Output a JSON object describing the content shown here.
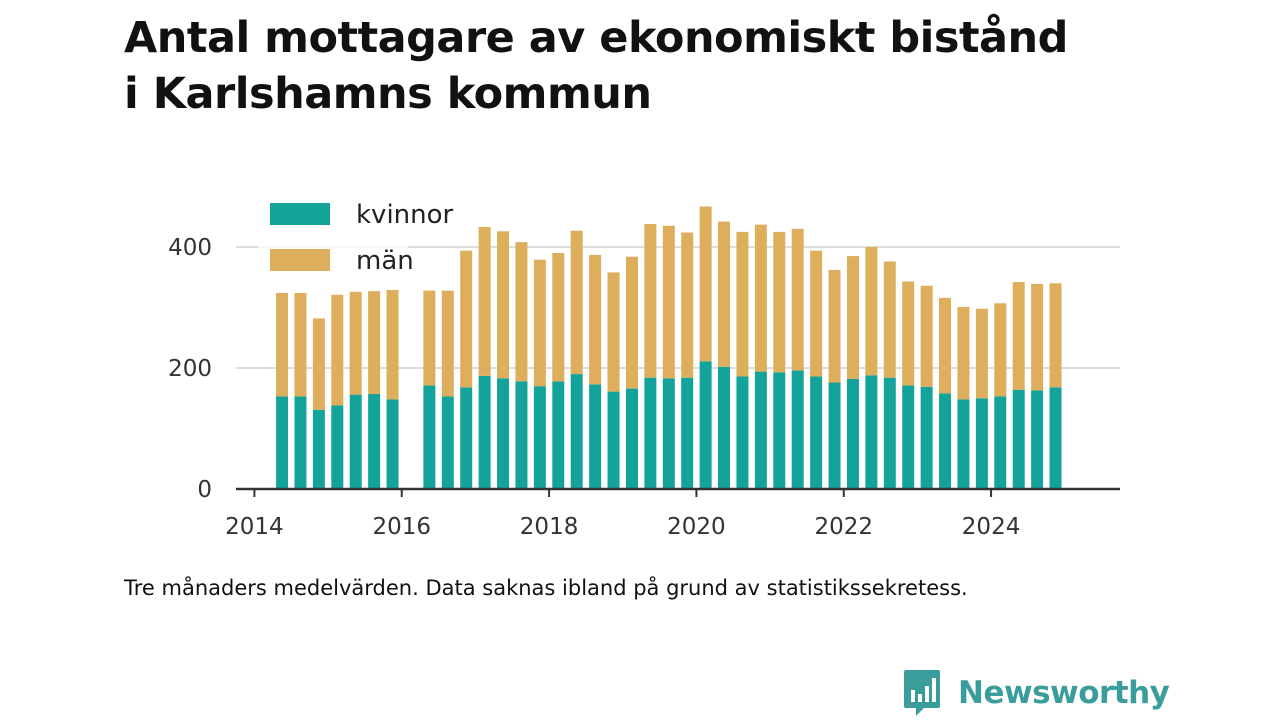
{
  "title_lines": [
    "Antal mottagare av ekonomiskt bistånd",
    "i Karlshamns kommun"
  ],
  "caption": "Tre månaders medelvärden. Data saknas ibland på grund av statistikssekretess.",
  "brand": {
    "name": "Newsworthy",
    "icon": "newsworthy-logo-icon"
  },
  "colors": {
    "kvinnor": "#14a39a",
    "man": "#ddae5c",
    "man_faded": "#faf0e1",
    "grid": "#dddddd",
    "axis": "#333333",
    "brand": "#3a9d9b"
  },
  "chart_data": {
    "type": "bar",
    "stacked": true,
    "xlabel": "",
    "ylabel": "",
    "ylim": [
      0,
      470
    ],
    "xlim": [
      2013.75,
      2025.75
    ],
    "yticks": [
      0,
      200,
      400
    ],
    "xticks": [
      2014,
      2016,
      2018,
      2020,
      2022,
      2024
    ],
    "grid": true,
    "legend_position": "top-left",
    "series": [
      {
        "name": "kvinnor",
        "values": [
          153,
          153,
          131,
          138,
          156,
          157,
          148,
          null,
          171,
          153,
          168,
          187,
          183,
          178,
          170,
          178,
          190,
          173,
          161,
          166,
          184,
          183,
          184,
          211,
          202,
          186,
          194,
          193,
          196,
          186,
          176,
          182,
          188,
          184,
          171,
          169,
          158,
          148,
          150,
          153,
          164,
          163,
          168
        ]
      },
      {
        "name": "män",
        "values": [
          171,
          171,
          151,
          183,
          170,
          170,
          181,
          null,
          157,
          175,
          226,
          246,
          243,
          230,
          209,
          212,
          237,
          214,
          197,
          218,
          254,
          252,
          240,
          256,
          240,
          239,
          243,
          232,
          234,
          208,
          186,
          203,
          212,
          192,
          172,
          167,
          158,
          153,
          148,
          154,
          178,
          176,
          172
        ]
      }
    ],
    "x": [
      2014.375,
      2014.625,
      2014.875,
      2015.125,
      2015.375,
      2015.625,
      2015.875,
      2016.125,
      2016.375,
      2016.625,
      2016.875,
      2017.125,
      2017.375,
      2017.625,
      2017.875,
      2018.125,
      2018.375,
      2018.625,
      2018.875,
      2019.125,
      2019.375,
      2019.625,
      2019.875,
      2020.125,
      2020.375,
      2020.625,
      2020.875,
      2021.125,
      2021.375,
      2021.625,
      2021.875,
      2022.125,
      2022.375,
      2022.625,
      2022.875,
      2023.125,
      2023.375,
      2023.625,
      2023.875,
      2024.125,
      2024.375,
      2024.625,
      2024.875
    ]
  }
}
